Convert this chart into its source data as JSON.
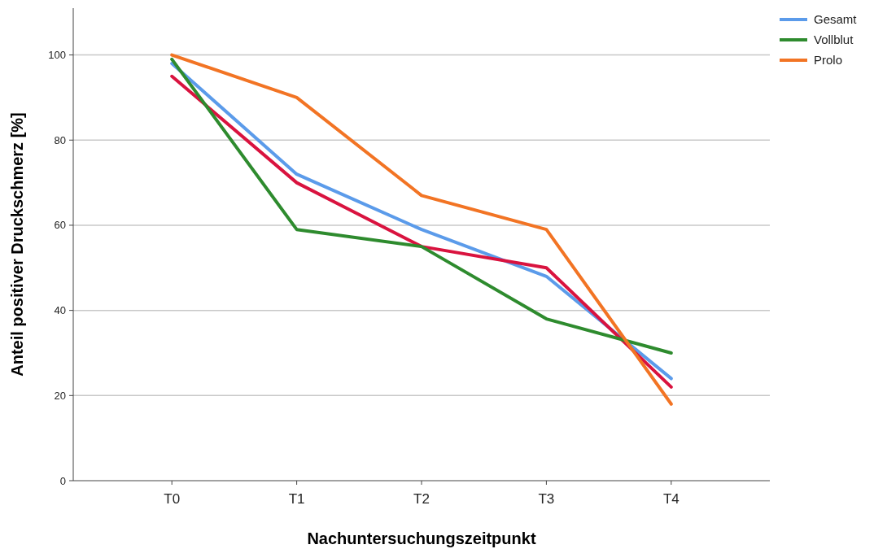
{
  "chart_data": {
    "type": "line",
    "xlabel": "Nachuntersuchungszeitpunkt",
    "ylabel": "Anteil positiver Druckschmerz [%]",
    "categories": [
      "T0",
      "T1",
      "T2",
      "T3",
      "T4"
    ],
    "series": [
      {
        "name": "Gesamt",
        "color": "#5b9bea",
        "values": [
          98,
          72,
          59,
          48,
          24
        ]
      },
      {
        "color": "#d9133f",
        "values": [
          95,
          70,
          55,
          50,
          22
        ]
      },
      {
        "name": "Vollblut",
        "color": "#2e8b2e",
        "values": [
          99,
          59,
          55,
          38,
          30
        ]
      },
      {
        "name": "Prolo",
        "color": "#f27424",
        "values": [
          100,
          90,
          67,
          59,
          18
        ]
      }
    ],
    "ylim": [
      0,
      111
    ],
    "yticks": [
      0,
      20,
      40,
      60,
      80,
      100
    ],
    "grid": "y",
    "legend": "top right",
    "line_style": "solid",
    "marker": "none"
  }
}
